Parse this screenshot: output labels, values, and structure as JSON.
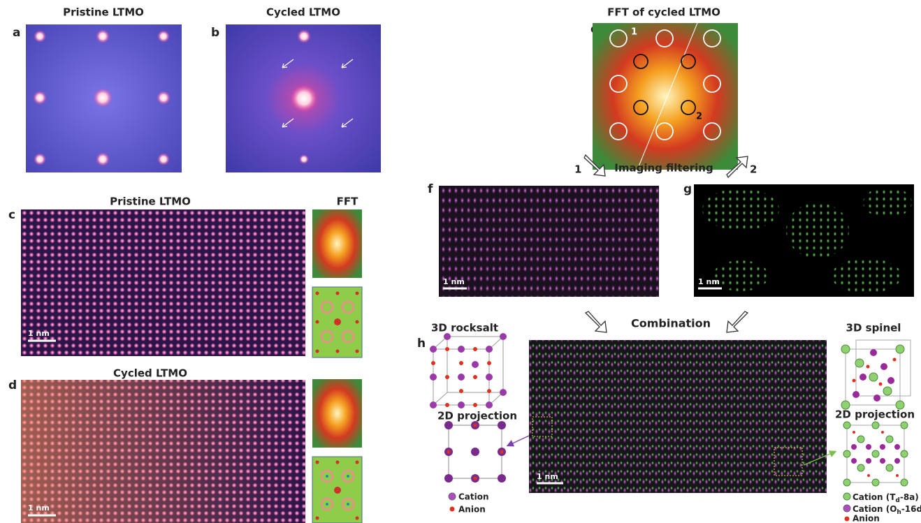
{
  "panels": {
    "a": {
      "letter": "a",
      "title": "Pristine LTMO"
    },
    "b": {
      "letter": "b",
      "title": "Cycled LTMO"
    },
    "c": {
      "letter": "c",
      "title": "Pristine LTMO",
      "fft_title": "FFT",
      "scale_bar": "1 nm"
    },
    "d": {
      "letter": "d",
      "title": "Cycled LTMO",
      "scale_bar": "1 nm"
    },
    "e": {
      "letter": "e",
      "title": "FFT of cycled LTMO",
      "spot_labels": [
        "1",
        "2"
      ]
    },
    "filter": {
      "label": "Imaging filtering",
      "arrows": [
        "1",
        "2"
      ]
    },
    "f": {
      "letter": "f",
      "scale_bar": "1 nm"
    },
    "g": {
      "letter": "g",
      "scale_bar": "1 nm"
    },
    "h": {
      "letter": "h",
      "combination": "Combination",
      "scale_bar": "1 nm",
      "rocksalt": {
        "title": "3D rocksalt",
        "projection": "2D projection",
        "legend": [
          "Cation",
          "Anion"
        ]
      },
      "spinel": {
        "title": "3D spinel",
        "projection": "2D projection",
        "legend": [
          {
            "prefix": "Cation (T",
            "sub": "d",
            "suffix": "-8a)"
          },
          {
            "prefix": "Cation (O",
            "sub": "h",
            "suffix": "-16d)"
          },
          "Anion"
        ]
      }
    }
  }
}
